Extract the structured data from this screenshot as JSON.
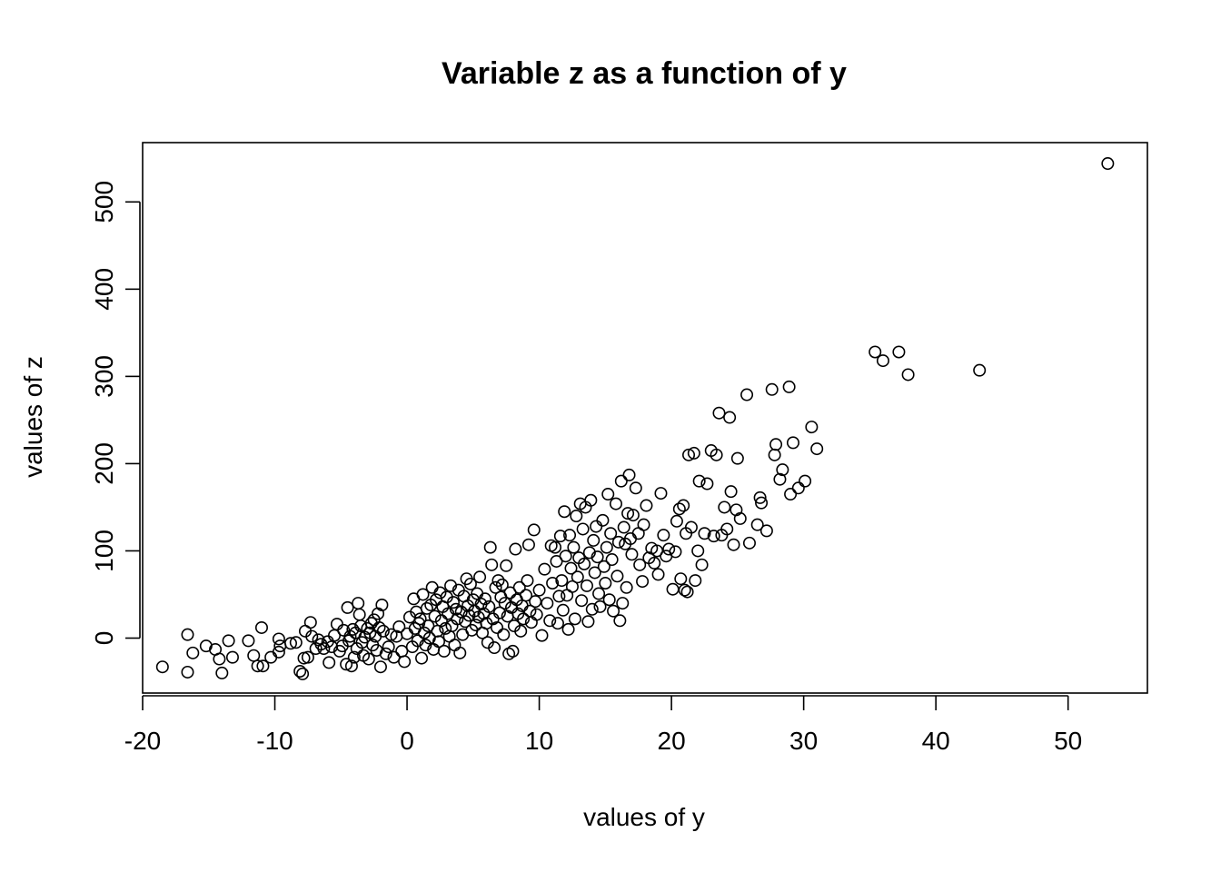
{
  "chart_data": {
    "type": "scatter",
    "title": "Variable z as a function of y",
    "xlabel": "values of y",
    "ylabel": "values of z",
    "xlim": [
      -20,
      56
    ],
    "ylim": [
      -63,
      568
    ],
    "x_ticks": [
      -20,
      -10,
      0,
      10,
      20,
      30,
      40,
      50
    ],
    "y_ticks": [
      0,
      100,
      200,
      300,
      400,
      500
    ],
    "grid": false,
    "marker": "open-circle",
    "points": [
      [
        -18.5,
        -33
      ],
      [
        -16.6,
        4
      ],
      [
        -16.2,
        -17
      ],
      [
        -16.6,
        -39
      ],
      [
        -15.2,
        -9
      ],
      [
        -14.5,
        -13
      ],
      [
        -14.2,
        -24
      ],
      [
        -14.0,
        -40
      ],
      [
        -13.5,
        -3
      ],
      [
        -13.2,
        -22
      ],
      [
        -12.0,
        -3
      ],
      [
        -11.6,
        -20
      ],
      [
        -11.3,
        -32
      ],
      [
        -10.9,
        -32
      ],
      [
        -11.0,
        12
      ],
      [
        -10.3,
        -22
      ],
      [
        -9.7,
        -16
      ],
      [
        -9.6,
        -9
      ],
      [
        -9.7,
        -1
      ],
      [
        -8.8,
        -6
      ],
      [
        -8.4,
        -5
      ],
      [
        -8.1,
        -38
      ],
      [
        -7.9,
        -41
      ],
      [
        -7.8,
        -23
      ],
      [
        -7.7,
        8
      ],
      [
        -7.5,
        -22
      ],
      [
        -7.3,
        18
      ],
      [
        -7.2,
        2
      ],
      [
        -6.9,
        -12
      ],
      [
        -6.7,
        -2
      ],
      [
        -6.5,
        -7
      ],
      [
        -6.3,
        -12
      ],
      [
        -6.0,
        -4
      ],
      [
        -5.9,
        -28
      ],
      [
        -5.7,
        -10
      ],
      [
        -5.5,
        3
      ],
      [
        -5.3,
        16
      ],
      [
        -5.1,
        -15
      ],
      [
        -4.9,
        -9
      ],
      [
        -4.8,
        9
      ],
      [
        -4.6,
        -30
      ],
      [
        -4.5,
        35
      ],
      [
        -4.4,
        -3
      ],
      [
        -4.3,
        2
      ],
      [
        -4.2,
        -32
      ],
      [
        -4.1,
        10
      ],
      [
        -4.0,
        -22
      ],
      [
        -3.9,
        6
      ],
      [
        -3.8,
        -12
      ],
      [
        -3.7,
        40
      ],
      [
        -3.6,
        27
      ],
      [
        -3.5,
        14
      ],
      [
        -3.4,
        -5
      ],
      [
        -3.3,
        -20
      ],
      [
        -3.2,
        1
      ],
      [
        -3.0,
        11
      ],
      [
        -2.9,
        -24
      ],
      [
        -2.8,
        6
      ],
      [
        -2.7,
        17
      ],
      [
        -2.6,
        -8
      ],
      [
        -2.5,
        21
      ],
      [
        -2.4,
        2
      ],
      [
        -2.3,
        -14
      ],
      [
        -2.2,
        28
      ],
      [
        -2.1,
        12
      ],
      [
        -2.0,
        -33
      ],
      [
        -1.9,
        38
      ],
      [
        -1.8,
        8
      ],
      [
        -1.6,
        -18
      ],
      [
        -1.4,
        -10
      ],
      [
        -1.2,
        4
      ],
      [
        -1.0,
        -22
      ],
      [
        -0.8,
        2
      ],
      [
        -0.6,
        13
      ],
      [
        -0.4,
        -15
      ],
      [
        -0.2,
        -27
      ],
      [
        0.0,
        5
      ],
      [
        0.2,
        24
      ],
      [
        0.4,
        -10
      ],
      [
        0.5,
        45
      ],
      [
        0.6,
        11
      ],
      [
        0.7,
        30
      ],
      [
        0.8,
        -3
      ],
      [
        0.9,
        17
      ],
      [
        1.0,
        22
      ],
      [
        1.1,
        -23
      ],
      [
        1.2,
        50
      ],
      [
        1.3,
        6
      ],
      [
        1.4,
        -8
      ],
      [
        1.5,
        34
      ],
      [
        1.6,
        14
      ],
      [
        1.7,
        0
      ],
      [
        1.8,
        38
      ],
      [
        1.9,
        58
      ],
      [
        2.0,
        -13
      ],
      [
        2.1,
        25
      ],
      [
        2.2,
        44
      ],
      [
        2.3,
        8
      ],
      [
        2.4,
        -4
      ],
      [
        2.5,
        52
      ],
      [
        2.6,
        20
      ],
      [
        2.7,
        36
      ],
      [
        2.8,
        -15
      ],
      [
        2.9,
        11
      ],
      [
        3.0,
        47
      ],
      [
        3.1,
        28
      ],
      [
        3.2,
        2
      ],
      [
        3.3,
        60
      ],
      [
        3.4,
        14
      ],
      [
        3.5,
        41
      ],
      [
        3.6,
        -8
      ],
      [
        3.7,
        33
      ],
      [
        3.8,
        22
      ],
      [
        3.9,
        55
      ],
      [
        4.0,
        -17
      ],
      [
        4.1,
        30
      ],
      [
        4.2,
        4
      ],
      [
        4.3,
        48
      ],
      [
        4.4,
        19
      ],
      [
        4.5,
        68
      ],
      [
        4.6,
        37
      ],
      [
        4.7,
        26
      ],
      [
        4.8,
        62
      ],
      [
        4.9,
        9
      ],
      [
        5.0,
        44
      ],
      [
        5.1,
        31
      ],
      [
        5.2,
        15
      ],
      [
        5.3,
        51
      ],
      [
        5.4,
        24
      ],
      [
        5.5,
        70
      ],
      [
        5.6,
        39
      ],
      [
        5.7,
        6
      ],
      [
        5.8,
        28
      ],
      [
        5.9,
        45
      ],
      [
        6.0,
        17
      ],
      [
        6.1,
        -5
      ],
      [
        6.2,
        36
      ],
      [
        6.3,
        104
      ],
      [
        6.4,
        84
      ],
      [
        6.5,
        22
      ],
      [
        6.6,
        -11
      ],
      [
        6.7,
        58
      ],
      [
        6.8,
        12
      ],
      [
        6.9,
        66
      ],
      [
        7.0,
        29
      ],
      [
        7.1,
        47
      ],
      [
        7.2,
        61
      ],
      [
        7.3,
        4
      ],
      [
        7.4,
        40
      ],
      [
        7.5,
        83
      ],
      [
        7.6,
        25
      ],
      [
        7.7,
        -18
      ],
      [
        7.8,
        52
      ],
      [
        7.9,
        35
      ],
      [
        8.0,
        -15
      ],
      [
        8.1,
        14
      ],
      [
        8.2,
        102
      ],
      [
        8.3,
        44
      ],
      [
        8.4,
        28
      ],
      [
        8.5,
        58
      ],
      [
        8.6,
        8
      ],
      [
        8.7,
        37
      ],
      [
        8.8,
        22
      ],
      [
        9.0,
        49
      ],
      [
        9.1,
        66
      ],
      [
        9.2,
        107
      ],
      [
        9.3,
        31
      ],
      [
        9.4,
        18
      ],
      [
        9.6,
        124
      ],
      [
        9.7,
        42
      ],
      [
        9.8,
        27
      ],
      [
        10.0,
        55
      ],
      [
        10.2,
        3
      ],
      [
        10.4,
        79
      ],
      [
        10.6,
        40
      ],
      [
        10.8,
        20
      ],
      [
        10.9,
        106
      ],
      [
        11.0,
        63
      ],
      [
        11.2,
        104
      ],
      [
        11.3,
        88
      ],
      [
        11.4,
        17
      ],
      [
        11.5,
        48
      ],
      [
        11.6,
        117
      ],
      [
        11.7,
        66
      ],
      [
        11.8,
        32
      ],
      [
        11.9,
        145
      ],
      [
        12.0,
        94
      ],
      [
        12.1,
        49
      ],
      [
        12.2,
        10
      ],
      [
        12.3,
        118
      ],
      [
        12.4,
        80
      ],
      [
        12.5,
        59
      ],
      [
        12.6,
        104
      ],
      [
        12.7,
        22
      ],
      [
        12.8,
        140
      ],
      [
        12.9,
        70
      ],
      [
        13.0,
        92
      ],
      [
        13.1,
        154
      ],
      [
        13.2,
        43
      ],
      [
        13.3,
        125
      ],
      [
        13.4,
        85
      ],
      [
        13.5,
        150
      ],
      [
        13.6,
        60
      ],
      [
        13.7,
        19
      ],
      [
        13.8,
        98
      ],
      [
        13.9,
        158
      ],
      [
        14.0,
        33
      ],
      [
        14.1,
        112
      ],
      [
        14.2,
        75
      ],
      [
        14.3,
        128
      ],
      [
        14.4,
        93
      ],
      [
        14.5,
        51
      ],
      [
        14.6,
        36
      ],
      [
        14.8,
        135
      ],
      [
        14.9,
        82
      ],
      [
        15.0,
        63
      ],
      [
        15.1,
        104
      ],
      [
        15.2,
        165
      ],
      [
        15.3,
        44
      ],
      [
        15.4,
        120
      ],
      [
        15.5,
        90
      ],
      [
        15.6,
        31
      ],
      [
        15.8,
        154
      ],
      [
        15.9,
        71
      ],
      [
        16.0,
        110
      ],
      [
        16.1,
        20
      ],
      [
        16.2,
        180
      ],
      [
        16.3,
        40
      ],
      [
        16.4,
        127
      ],
      [
        16.5,
        108
      ],
      [
        16.6,
        58
      ],
      [
        16.7,
        143
      ],
      [
        16.8,
        187
      ],
      [
        16.9,
        114
      ],
      [
        17.0,
        96
      ],
      [
        17.1,
        141
      ],
      [
        17.3,
        172
      ],
      [
        17.5,
        120
      ],
      [
        17.6,
        84
      ],
      [
        17.8,
        65
      ],
      [
        17.9,
        130
      ],
      [
        18.1,
        152
      ],
      [
        18.3,
        92
      ],
      [
        18.5,
        103
      ],
      [
        18.7,
        86
      ],
      [
        18.9,
        100
      ],
      [
        19.0,
        73
      ],
      [
        19.2,
        166
      ],
      [
        19.4,
        118
      ],
      [
        19.6,
        94
      ],
      [
        19.8,
        102
      ],
      [
        20.1,
        56
      ],
      [
        20.3,
        99
      ],
      [
        20.4,
        134
      ],
      [
        20.6,
        148
      ],
      [
        20.7,
        68
      ],
      [
        20.9,
        152
      ],
      [
        21.0,
        55
      ],
      [
        21.1,
        120
      ],
      [
        21.2,
        53
      ],
      [
        21.3,
        210
      ],
      [
        21.5,
        127
      ],
      [
        21.7,
        212
      ],
      [
        21.8,
        66
      ],
      [
        22.0,
        100
      ],
      [
        22.1,
        180
      ],
      [
        22.3,
        84
      ],
      [
        22.5,
        120
      ],
      [
        22.7,
        177
      ],
      [
        23.0,
        215
      ],
      [
        23.2,
        117
      ],
      [
        23.4,
        210
      ],
      [
        23.6,
        258
      ],
      [
        23.8,
        118
      ],
      [
        24.0,
        150
      ],
      [
        24.2,
        125
      ],
      [
        24.4,
        253
      ],
      [
        24.5,
        168
      ],
      [
        24.7,
        107
      ],
      [
        24.9,
        147
      ],
      [
        25.0,
        206
      ],
      [
        25.2,
        137
      ],
      [
        25.7,
        279
      ],
      [
        25.9,
        109
      ],
      [
        26.5,
        130
      ],
      [
        26.7,
        161
      ],
      [
        26.8,
        155
      ],
      [
        27.2,
        123
      ],
      [
        27.6,
        285
      ],
      [
        27.8,
        210
      ],
      [
        27.9,
        222
      ],
      [
        28.2,
        182
      ],
      [
        28.4,
        193
      ],
      [
        28.9,
        288
      ],
      [
        29.0,
        165
      ],
      [
        29.2,
        224
      ],
      [
        29.6,
        172
      ],
      [
        30.1,
        180
      ],
      [
        30.6,
        242
      ],
      [
        31.0,
        217
      ],
      [
        35.4,
        328
      ],
      [
        36.0,
        318
      ],
      [
        37.2,
        328
      ],
      [
        37.9,
        302
      ],
      [
        43.3,
        307
      ],
      [
        53.0,
        544
      ]
    ]
  }
}
